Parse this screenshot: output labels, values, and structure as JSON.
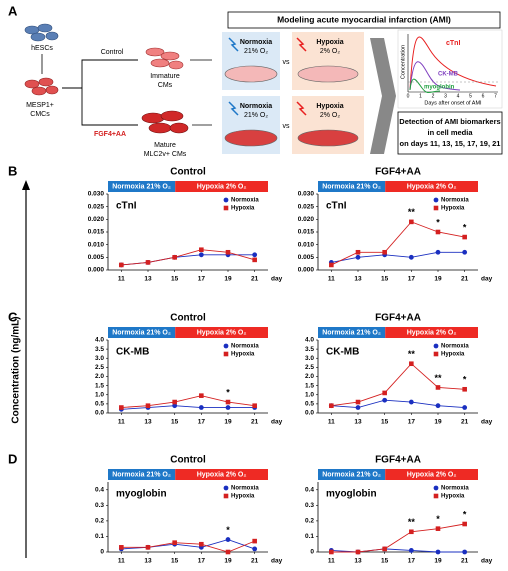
{
  "panel_labels": [
    "A",
    "B",
    "C",
    "D"
  ],
  "y_axis_label": "Concentration (ng/mL)",
  "panel_a": {
    "hescs": "hESCs",
    "mesp1_line1": "MESP1+",
    "mesp1_line2": "CMCs",
    "control": "Control",
    "fgf": "FGF4+AA",
    "immature_line1": "Immature",
    "immature_line2": "CMs",
    "mature_line1": "Mature",
    "mature_line2": "MLC2v+ CMs",
    "box_title": "Modeling acute myocardial infarction (AMI)",
    "normoxia": "Normoxia",
    "normoxia_o2": "21% O₂",
    "hypoxia": "Hypoxia",
    "hypoxia_o2": "2% O₂",
    "vs": "vs",
    "inset_y_label": "Concentration",
    "inset_x_label": "Days after onset of AMI",
    "inset_xticks": [
      "0",
      "1",
      "2",
      "3",
      "4",
      "5",
      "6",
      "7"
    ],
    "inset_ctni": "cTnI",
    "inset_ckmb": "CK-MB",
    "inset_myo": "myoglobin",
    "detection_line1": "Detection of AMI biomarkers",
    "detection_line2": "in cell media",
    "detection_line3": "on days 11, 13, 15, 17, 19, 21"
  },
  "chart_data": [
    {
      "type": "line",
      "title": "Control",
      "label": "cTnI",
      "phases": [
        {
          "label": "Normoxia 21% O₂",
          "color": "#1f78c8"
        },
        {
          "label": "Hypoxia 2% O₂",
          "color": "#ee2a24"
        }
      ],
      "x": [
        11,
        13,
        15,
        17,
        19,
        21
      ],
      "x_unit": "day",
      "xlim": [
        10,
        22
      ],
      "ylim": [
        0,
        0.03
      ],
      "yticks": [
        {
          "value": 0,
          "label": "0.000"
        },
        {
          "value": 0.005,
          "label": "0.005"
        },
        {
          "value": 0.01,
          "label": "0.010"
        },
        {
          "value": 0.015,
          "label": "0.015"
        },
        {
          "value": 0.02,
          "label": "0.020"
        },
        {
          "value": 0.025,
          "label": "0.025"
        },
        {
          "value": 0.03,
          "label": "0.030"
        }
      ],
      "series": [
        {
          "name": "Normoxia",
          "color": "#1a2fc0",
          "marker": "circle",
          "values": [
            0.002,
            0.003,
            0.005,
            0.006,
            0.006,
            0.006
          ]
        },
        {
          "name": "Hypoxia",
          "color": "#d42020",
          "marker": "square",
          "values": [
            0.002,
            0.003,
            0.005,
            0.008,
            0.007,
            0.004
          ]
        }
      ],
      "annotations": []
    },
    {
      "type": "line",
      "title": "FGF4+AA",
      "label": "cTnI",
      "phases": [
        {
          "label": "Normoxia 21% O₂",
          "color": "#1f78c8"
        },
        {
          "label": "Hypoxia 2% O₂",
          "color": "#ee2a24"
        }
      ],
      "x": [
        11,
        13,
        15,
        17,
        19,
        21
      ],
      "x_unit": "day",
      "xlim": [
        10,
        22
      ],
      "ylim": [
        0,
        0.03
      ],
      "yticks": [
        {
          "value": 0,
          "label": "0.000"
        },
        {
          "value": 0.005,
          "label": "0.005"
        },
        {
          "value": 0.01,
          "label": "0.010"
        },
        {
          "value": 0.015,
          "label": "0.015"
        },
        {
          "value": 0.02,
          "label": "0.020"
        },
        {
          "value": 0.025,
          "label": "0.025"
        },
        {
          "value": 0.03,
          "label": "0.030"
        }
      ],
      "series": [
        {
          "name": "Normoxia",
          "color": "#1a2fc0",
          "marker": "circle",
          "values": [
            0.003,
            0.005,
            0.006,
            0.005,
            0.007,
            0.007
          ]
        },
        {
          "name": "Hypoxia",
          "color": "#d42020",
          "marker": "square",
          "values": [
            0.002,
            0.007,
            0.007,
            0.019,
            0.015,
            0.013
          ]
        }
      ],
      "annotations": [
        {
          "x": 17,
          "label": "**"
        },
        {
          "x": 19,
          "label": "*"
        },
        {
          "x": 21,
          "label": "*"
        }
      ]
    },
    {
      "type": "line",
      "title": "Control",
      "label": "CK-MB",
      "phases": [
        {
          "label": "Normoxia 21% O₂",
          "color": "#1f78c8"
        },
        {
          "label": "Hypoxia 2% O₂",
          "color": "#ee2a24"
        }
      ],
      "x": [
        11,
        13,
        15,
        17,
        19,
        21
      ],
      "x_unit": "day",
      "xlim": [
        10,
        22
      ],
      "ylim": [
        0,
        4
      ],
      "yticks": [
        {
          "value": 0,
          "label": "0.0"
        },
        0.5,
        {
          "value": 1,
          "label": "1.0"
        },
        1.5,
        {
          "value": 2,
          "label": "2.0"
        },
        2.5,
        {
          "value": 3,
          "label": "3.0"
        },
        3.5,
        {
          "value": 4,
          "label": "4.0"
        }
      ],
      "series": [
        {
          "name": "Normoxia",
          "color": "#1a2fc0",
          "marker": "circle",
          "values": [
            0.2,
            0.3,
            0.4,
            0.3,
            0.3,
            0.3
          ]
        },
        {
          "name": "Hypoxia",
          "color": "#d42020",
          "marker": "square",
          "values": [
            0.3,
            0.4,
            0.6,
            0.95,
            0.6,
            0.4
          ]
        }
      ],
      "annotations": [
        {
          "x": 19,
          "label": "*"
        }
      ]
    },
    {
      "type": "line",
      "title": "FGF4+AA",
      "label": "CK-MB",
      "phases": [
        {
          "label": "Normoxia 21% O₂",
          "color": "#1f78c8"
        },
        {
          "label": "Hypoxia 2% O₂",
          "color": "#ee2a24"
        }
      ],
      "x": [
        11,
        13,
        15,
        17,
        19,
        21
      ],
      "x_unit": "day",
      "xlim": [
        10,
        22
      ],
      "ylim": [
        0,
        4
      ],
      "yticks": [
        {
          "value": 0,
          "label": "0.0"
        },
        0.5,
        {
          "value": 1,
          "label": "1.0"
        },
        1.5,
        {
          "value": 2,
          "label": "2.0"
        },
        2.5,
        {
          "value": 3,
          "label": "3.0"
        },
        3.5,
        {
          "value": 4,
          "label": "4.0"
        }
      ],
      "series": [
        {
          "name": "Normoxia",
          "color": "#1a2fc0",
          "marker": "circle",
          "values": [
            0.4,
            0.3,
            0.7,
            0.6,
            0.4,
            0.3
          ]
        },
        {
          "name": "Hypoxia",
          "color": "#d42020",
          "marker": "square",
          "values": [
            0.4,
            0.6,
            1.1,
            2.7,
            1.4,
            1.3
          ]
        }
      ],
      "annotations": [
        {
          "x": 17,
          "label": "**"
        },
        {
          "x": 19,
          "label": "**"
        },
        {
          "x": 21,
          "label": "*"
        }
      ]
    },
    {
      "type": "line",
      "title": "Control",
      "label": "myoglobin",
      "phases": [
        {
          "label": "Normoxia 21% O₂",
          "color": "#1f78c8"
        },
        {
          "label": "Hypoxia 2% O₂",
          "color": "#ee2a24"
        }
      ],
      "x": [
        11,
        13,
        15,
        17,
        19,
        21
      ],
      "x_unit": "day",
      "xlim": [
        10,
        22
      ],
      "ylim": [
        0,
        0.45
      ],
      "yticks": [
        0,
        0.1,
        0.2,
        0.3,
        0.4
      ],
      "series": [
        {
          "name": "Normoxia",
          "color": "#1a2fc0",
          "marker": "circle",
          "values": [
            0.02,
            0.03,
            0.05,
            0.03,
            0.08,
            0.02
          ]
        },
        {
          "name": "Hypoxia",
          "color": "#d42020",
          "marker": "square",
          "values": [
            0.03,
            0.03,
            0.06,
            0.05,
            0.0,
            0.07
          ]
        }
      ],
      "annotations": [
        {
          "x": 19,
          "label": "*"
        }
      ]
    },
    {
      "type": "line",
      "title": "FGF4+AA",
      "label": "myoglobin",
      "phases": [
        {
          "label": "Normoxia 21% O₂",
          "color": "#1f78c8"
        },
        {
          "label": "Hypoxia 2% O₂",
          "color": "#ee2a24"
        }
      ],
      "x": [
        11,
        13,
        15,
        17,
        19,
        21
      ],
      "x_unit": "day",
      "xlim": [
        10,
        22
      ],
      "ylim": [
        0,
        0.45
      ],
      "yticks": [
        0,
        0.1,
        0.2,
        0.3,
        0.4
      ],
      "series": [
        {
          "name": "Normoxia",
          "color": "#1a2fc0",
          "marker": "circle",
          "values": [
            0.01,
            0.0,
            0.02,
            0.01,
            0.0,
            0.0
          ]
        },
        {
          "name": "Hypoxia",
          "color": "#d42020",
          "marker": "square",
          "values": [
            0.0,
            0.0,
            0.02,
            0.13,
            0.15,
            0.18
          ]
        }
      ],
      "annotations": [
        {
          "x": 17,
          "label": "**"
        },
        {
          "x": 19,
          "label": "*"
        },
        {
          "x": 21,
          "label": "*"
        }
      ]
    }
  ]
}
